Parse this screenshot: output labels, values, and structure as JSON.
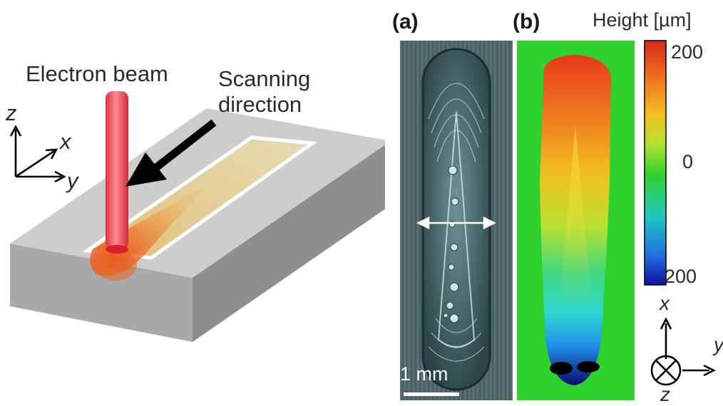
{
  "schematic": {
    "beam_label": "Electron beam",
    "scan_label_line1": "Scanning",
    "scan_label_line2": "direction",
    "axis_z": "z",
    "axis_x": "x",
    "axis_y": "y"
  },
  "panel_a": {
    "label": "(a)",
    "scale_bar": "1 mm"
  },
  "panel_b": {
    "label": "(b)"
  },
  "colorbar": {
    "title": "Height [µm]",
    "tick_max": "200",
    "tick_mid": "0",
    "tick_min": "-200",
    "colors": [
      "#d42a1a",
      "#f07020",
      "#f4c020",
      "#b8e030",
      "#30d030",
      "#20c8c0",
      "#2070e0",
      "#1010a0"
    ]
  },
  "orientation": {
    "axis_x": "x",
    "axis_y": "y",
    "axis_z": "z"
  }
}
